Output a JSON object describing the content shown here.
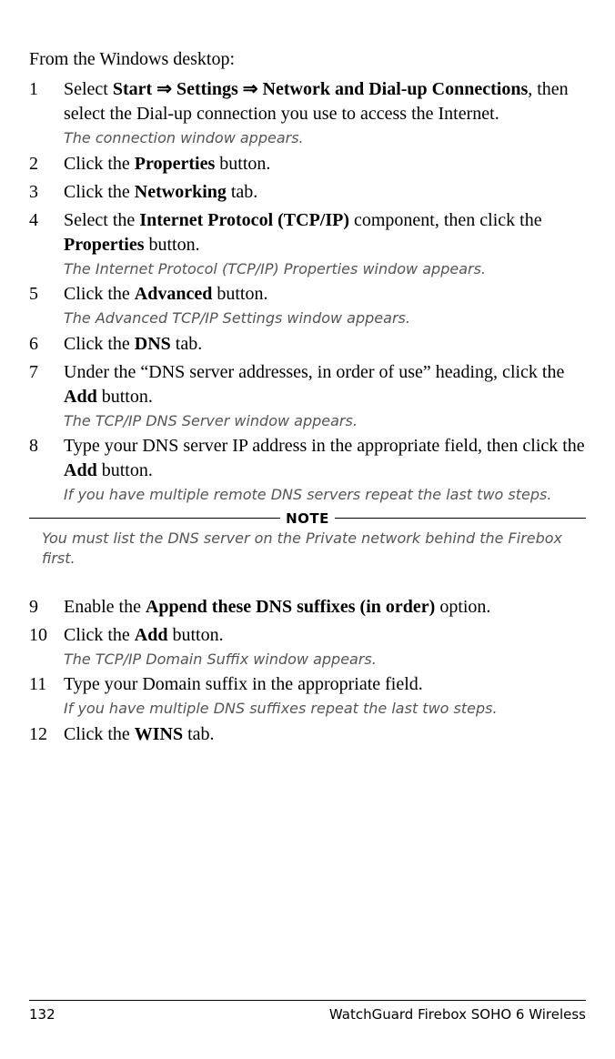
{
  "intro": "From the Windows desktop:",
  "arrow_glyph": "⇒",
  "steps": [
    {
      "num": "1",
      "html": "Select <b>Start</b> <span class=\"arrow\">⇒</span> <b>Settings</b> <span class=\"arrow\">⇒</span> <b>Network and Dial-up Connections</b>, then select the Dial-up connection you use to access the Internet.",
      "result": "The connection window appears."
    },
    {
      "num": "2",
      "html": "Click the <b>Properties</b> button."
    },
    {
      "num": "3",
      "html": "Click the <b>Networking</b> tab."
    },
    {
      "num": "4",
      "html": "Select the <b>Internet Protocol (TCP/IP)</b> component, then click the <b>Properties</b> button.",
      "result": "The Internet Protocol (TCP/IP) Properties window appears."
    },
    {
      "num": "5",
      "html": "Click the <b>Advanced</b> button.",
      "result": "The Advanced TCP/IP Settings window appears."
    },
    {
      "num": "6",
      "html": "Click the <b>DNS</b> tab."
    },
    {
      "num": "7",
      "html": "Under the “DNS server addresses, in order of use” heading, click the <b>Add</b> button.",
      "result": "The TCP/IP DNS Server window appears."
    },
    {
      "num": "8",
      "html": "Type your DNS server IP address in the appropriate field, then click the <b>Add</b> button.",
      "result": "If you have multiple remote DNS servers repeat the last two steps."
    }
  ],
  "note": {
    "label": "NOTE",
    "text_html": "You <span class=\"must\">must</span> list the DNS server on the Private network behind the Firebox first."
  },
  "steps_after": [
    {
      "num": "9",
      "html": "Enable the <b>Append these DNS suffixes (in order)</b> option."
    },
    {
      "num": "10",
      "html": "Click the <b>Add</b> button.",
      "result": "The TCP/IP Domain Suffix window appears."
    },
    {
      "num": "11",
      "html": "Type your Domain suffix in the appropriate field.",
      "result": "If you have multiple DNS suffixes repeat the last two steps."
    },
    {
      "num": "12",
      "html": "Click the <b>WINS</b> tab."
    }
  ],
  "footer": {
    "page_number": "132",
    "product": "WatchGuard Firebox SOHO 6 Wireless"
  }
}
